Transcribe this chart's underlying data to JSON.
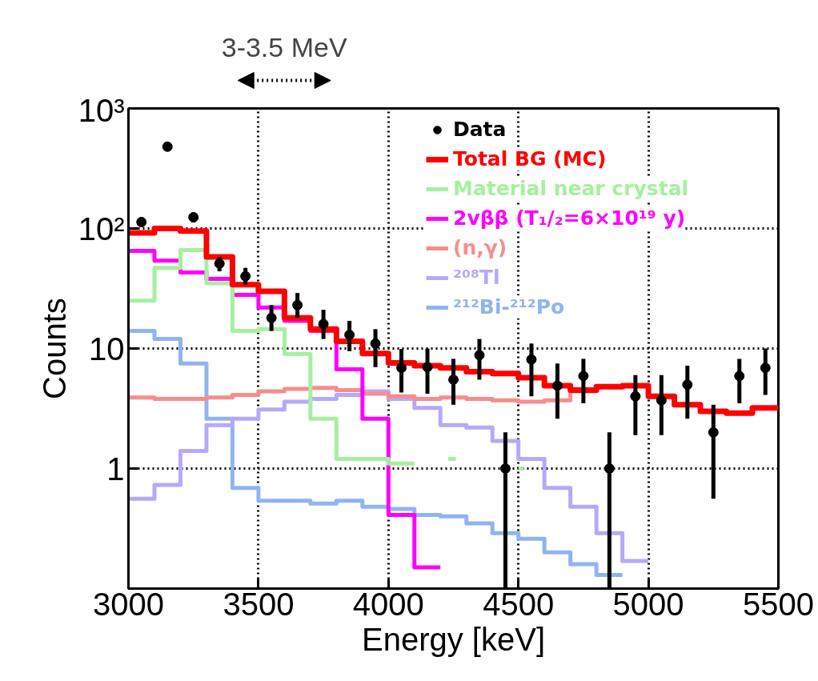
{
  "chart_data": {
    "type": "step",
    "xlabel": "Energy [keV]",
    "ylabel": "Counts",
    "annotations": [
      "3-3.5 MeV"
    ],
    "xlim": [
      3000,
      5500
    ],
    "xticks": [
      3000,
      3500,
      4000,
      4500,
      5000,
      5500
    ],
    "ylim": [
      0.1,
      1000
    ],
    "yticks": [
      {
        "value": 1,
        "label": "1"
      },
      {
        "value": 10,
        "label": "10"
      },
      {
        "value": 100,
        "label": "10²"
      },
      {
        "value": 1000,
        "label": "10³"
      }
    ],
    "log": "y",
    "grid": true,
    "legend": "top right",
    "series": [
      {
        "name": "Data",
        "type": "scatter",
        "marker": "circle",
        "color": "#000000",
        "x": [
          3050,
          3150,
          3250,
          3350,
          3450,
          3550,
          3650,
          3750,
          3850,
          3950,
          4050,
          4150,
          4250,
          4350,
          4450,
          4550,
          4650,
          4750,
          4850,
          4950,
          5050,
          5150,
          5250,
          5350,
          5450
        ],
        "values": [
          113,
          480,
          124,
          51,
          40,
          18,
          23,
          16,
          13,
          11,
          6.9,
          7,
          5.5,
          8.8,
          1.0,
          8.1,
          4.9,
          5.9,
          1.0,
          4.0,
          3.7,
          5.0,
          2.0,
          5.9,
          6.9
        ],
        "errors": [
          [
            103,
            124
          ],
          [
            455,
            505
          ],
          [
            112,
            136
          ],
          [
            44,
            58
          ],
          [
            34,
            47
          ],
          [
            14,
            23
          ],
          [
            18,
            29
          ],
          [
            12,
            21
          ],
          [
            9.5,
            17
          ],
          [
            7,
            14.5
          ],
          [
            4.3,
            9.9
          ],
          [
            4.2,
            10
          ],
          [
            3.4,
            8.2
          ],
          [
            5.5,
            12
          ],
          [
            0.1,
            2.0
          ],
          [
            4.0,
            11
          ],
          [
            2.6,
            7.5
          ],
          [
            3.5,
            8.2
          ],
          [
            0.1,
            2.0
          ],
          [
            1.9,
            6.0
          ],
          [
            1.9,
            6.0
          ],
          [
            2.6,
            7.2
          ],
          [
            0.56,
            3.4
          ],
          [
            3.5,
            8.2
          ],
          [
            4.1,
            10
          ]
        ]
      },
      {
        "name": "Total BG (MC)",
        "color": "#ff0000",
        "x": [
          3000,
          3100,
          3200,
          3300,
          3400,
          3500,
          3600,
          3700,
          3800,
          3900,
          4000,
          4100,
          4200,
          4300,
          4400,
          4500,
          4600,
          4700,
          4800,
          4900,
          5000,
          5100,
          5200,
          5300,
          5400,
          5500
        ],
        "values": [
          92,
          100,
          95,
          58,
          34,
          30,
          18,
          14.5,
          11.5,
          9.1,
          7.6,
          7.2,
          6.9,
          6.4,
          6.2,
          5.7,
          4.9,
          4.5,
          4.8,
          4.9,
          4.0,
          3.4,
          3.0,
          2.9,
          3.2,
          3.2
        ]
      },
      {
        "name": "Material near crystal",
        "color": "#a6f0a0",
        "x": [
          3000,
          3100,
          3200,
          3300,
          3400,
          3500,
          3600,
          3700,
          3800,
          3900,
          4000,
          4100,
          4150,
          4230,
          4260,
          4270,
          4500,
          4520
        ],
        "values": [
          25,
          47,
          66,
          35,
          14,
          14.5,
          9,
          2.6,
          1.2,
          1.2,
          1.1,
          1.1,
          null,
          1.2,
          1.2,
          null,
          1.0,
          1.0
        ]
      },
      {
        "name": "2vββ (T₁/₂=6×10¹⁹ y)",
        "color": "#ff00ff",
        "x": [
          3000,
          3100,
          3200,
          3300,
          3400,
          3500,
          3600,
          3700,
          3800,
          3900,
          4000,
          4100,
          4200
        ],
        "values": [
          65,
          54,
          43,
          38,
          28,
          22,
          17,
          14,
          6.7,
          2.6,
          0.41,
          0.15,
          0.15
        ]
      },
      {
        "name": "(n,γ)",
        "color": "#f88c8c",
        "x": [
          3000,
          3100,
          3200,
          3300,
          3400,
          3500,
          3600,
          3700,
          3800,
          3900,
          4000,
          4100,
          4200,
          4300,
          4400,
          4500,
          4600,
          4700,
          4800
        ],
        "values": [
          3.9,
          3.8,
          3.8,
          3.9,
          4.1,
          4.4,
          4.6,
          4.7,
          4.5,
          4.2,
          4.0,
          3.8,
          3.9,
          3.8,
          3.7,
          3.6,
          3.7,
          4.4,
          4.4
        ]
      },
      {
        "name": "²⁰⁸Tl",
        "color": "#b8a8f8",
        "x": [
          3000,
          3100,
          3200,
          3300,
          3400,
          3500,
          3600,
          3700,
          3800,
          3900,
          4000,
          4100,
          4200,
          4300,
          4400,
          4500,
          4600,
          4700,
          4800,
          4900,
          5000
        ],
        "values": [
          0.56,
          0.73,
          1.4,
          2.3,
          2.6,
          3.1,
          3.6,
          3.8,
          4.1,
          4.4,
          3.8,
          3.2,
          2.3,
          2.2,
          1.7,
          1.2,
          0.69,
          0.48,
          0.29,
          0.17,
          0.17
        ]
      },
      {
        "name": "²¹²Bi-²¹²Po",
        "color": "#90b4f0",
        "x": [
          3000,
          3100,
          3200,
          3300,
          3400,
          3500,
          3600,
          3700,
          3800,
          3900,
          4000,
          4100,
          4200,
          4300,
          4400,
          4500,
          4600,
          4700,
          4800,
          4900
        ],
        "values": [
          14,
          12,
          7.5,
          2.6,
          0.69,
          0.54,
          0.54,
          0.51,
          0.54,
          0.48,
          0.46,
          0.41,
          0.4,
          0.35,
          0.29,
          0.26,
          0.2,
          0.16,
          0.13,
          0.13
        ]
      }
    ]
  }
}
